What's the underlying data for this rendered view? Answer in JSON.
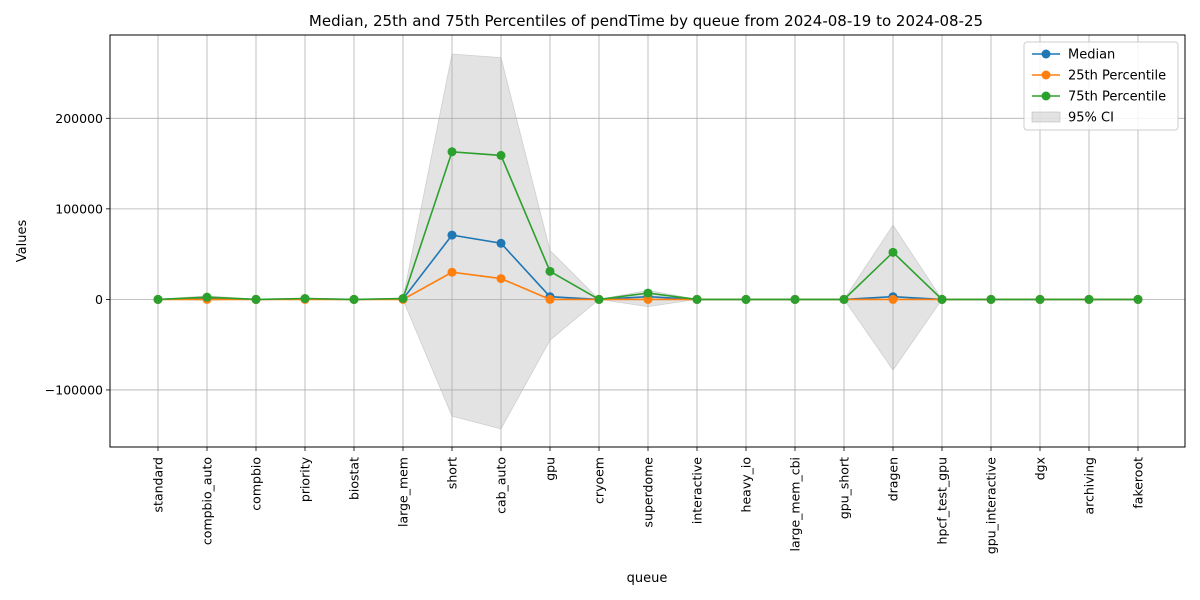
{
  "chart_data": {
    "type": "line",
    "title": "Median, 25th and 75th Percentiles of pendTime by queue from 2024-08-19 to 2024-08-25",
    "xlabel": "queue",
    "ylabel": "Values",
    "ylim": [
      -163000,
      292000
    ],
    "yticks": [
      -100000,
      0,
      100000,
      200000
    ],
    "ytick_labels": [
      "−100000",
      "0",
      "100000",
      "200000"
    ],
    "grid": true,
    "legend_position": "top-right",
    "categories": [
      "standard",
      "compbio_auto",
      "compbio",
      "priority",
      "biostat",
      "large_mem",
      "short",
      "cab_auto",
      "gpu",
      "cryoem",
      "superdome",
      "interactive",
      "heavy_io",
      "large_mem_cbi",
      "gpu_short",
      "dragen",
      "hpcf_test_gpu",
      "gpu_interactive",
      "dgx",
      "archiving",
      "fakeroot"
    ],
    "series": [
      {
        "name": "Median",
        "color": "#1f77b4",
        "values": [
          0,
          1500,
          0,
          500,
          0,
          500,
          71000,
          62000,
          3000,
          0,
          3000,
          0,
          0,
          0,
          0,
          3000,
          0,
          0,
          0,
          0,
          0
        ]
      },
      {
        "name": "25th Percentile",
        "color": "#ff7f0e",
        "values": [
          0,
          0,
          0,
          0,
          0,
          0,
          30000,
          23000,
          0,
          0,
          0,
          0,
          0,
          0,
          0,
          0,
          0,
          0,
          0,
          0,
          0
        ]
      },
      {
        "name": "75th Percentile",
        "color": "#2ca02c",
        "values": [
          0,
          2500,
          0,
          1000,
          0,
          1000,
          163000,
          159000,
          31000,
          0,
          7000,
          0,
          0,
          0,
          0,
          52000,
          0,
          0,
          0,
          0,
          0
        ]
      }
    ],
    "ci": {
      "name": "95% CI",
      "color": "#b0b0b0",
      "upper": [
        0,
        4000,
        0,
        1500,
        0,
        1500,
        271000,
        267000,
        54000,
        0,
        10000,
        0,
        0,
        0,
        0,
        82000,
        0,
        0,
        0,
        0,
        0
      ],
      "lower": [
        0,
        -1000,
        0,
        -500,
        0,
        -500,
        -129000,
        -143000,
        -45000,
        0,
        -8000,
        0,
        0,
        0,
        0,
        -78000,
        0,
        0,
        0,
        0,
        0
      ]
    }
  }
}
